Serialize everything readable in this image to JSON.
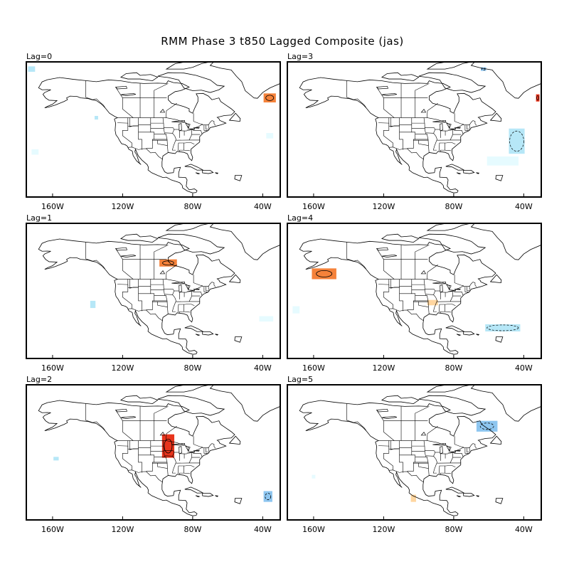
{
  "title": "RMM Phase 3 t850 Lagged Composite (jas)",
  "colors": {
    "warm_light": "#ffd6a0",
    "warm_mid": "#f5823a",
    "warm_strong": "#e8341c",
    "cool_faint": "#e6fbff",
    "cool_light": "#b6e7f7",
    "cool_mid": "#8ec6f0",
    "cool_strong": "#5b9ee8"
  },
  "lon_ticks": [
    "160W",
    "120W",
    "80W",
    "40W"
  ],
  "panels": [
    {
      "label": "Lag=0",
      "anomalies": [
        {
          "type": "warm",
          "level": "mid",
          "lon": -36,
          "lat": 60,
          "w": 7,
          "h": 5
        },
        {
          "type": "cool",
          "level": "light",
          "lon": -172,
          "lat": 76,
          "w": 4,
          "h": 3
        },
        {
          "type": "cool",
          "level": "light",
          "lon": -135,
          "lat": 49,
          "w": 2,
          "h": 2
        },
        {
          "type": "cool",
          "level": "faint",
          "lon": -36,
          "lat": 39,
          "w": 4,
          "h": 3
        },
        {
          "type": "cool",
          "level": "faint",
          "lon": -170,
          "lat": 30,
          "w": 4,
          "h": 3
        }
      ]
    },
    {
      "label": "Lag=3",
      "anomalies": [
        {
          "type": "warm",
          "level": "strong",
          "lon": -32,
          "lat": 60,
          "w": 2,
          "h": 4
        },
        {
          "type": "cool",
          "level": "mid",
          "lon": -63,
          "lat": 76,
          "w": 3,
          "h": 2
        },
        {
          "type": "cool",
          "level": "light",
          "lon": -44,
          "lat": 36,
          "w": 9,
          "h": 14
        },
        {
          "type": "cool",
          "level": "faint",
          "lon": -52,
          "lat": 25,
          "w": 18,
          "h": 5
        }
      ]
    },
    {
      "label": "Lag=1",
      "anomalies": [
        {
          "type": "warm",
          "level": "mid",
          "lon": -94,
          "lat": 58,
          "w": 10,
          "h": 4
        },
        {
          "type": "cool",
          "level": "light",
          "lon": -137,
          "lat": 35,
          "w": 3,
          "h": 4
        },
        {
          "type": "cool",
          "level": "faint",
          "lon": -38,
          "lat": 27,
          "w": 8,
          "h": 3
        }
      ]
    },
    {
      "label": "Lag=4",
      "anomalies": [
        {
          "type": "warm",
          "level": "mid",
          "lon": -154,
          "lat": 52,
          "w": 14,
          "h": 6
        },
        {
          "type": "warm",
          "level": "light",
          "lon": -92,
          "lat": 36,
          "w": 6,
          "h": 3
        },
        {
          "type": "cool",
          "level": "faint",
          "lon": -170,
          "lat": 32,
          "w": 4,
          "h": 4
        },
        {
          "type": "cool",
          "level": "light",
          "lon": -52,
          "lat": 22,
          "w": 20,
          "h": 4
        }
      ]
    },
    {
      "label": "Lag=2",
      "anomalies": [
        {
          "type": "warm",
          "level": "strong",
          "lon": -94,
          "lat": 46,
          "w": 7,
          "h": 13
        },
        {
          "type": "cool",
          "level": "light",
          "lon": -158,
          "lat": 39,
          "w": 3,
          "h": 2
        },
        {
          "type": "cool",
          "level": "mid",
          "lon": -37,
          "lat": 18,
          "w": 5,
          "h": 6
        }
      ]
    },
    {
      "label": "Lag=5",
      "anomalies": [
        {
          "type": "cool",
          "level": "mid",
          "lon": -61,
          "lat": 57,
          "w": 12,
          "h": 6
        },
        {
          "type": "warm",
          "level": "light",
          "lon": -103,
          "lat": 17,
          "w": 3,
          "h": 4
        },
        {
          "type": "cool",
          "level": "faint",
          "lon": -160,
          "lat": 29,
          "w": 2,
          "h": 2
        }
      ]
    }
  ]
}
